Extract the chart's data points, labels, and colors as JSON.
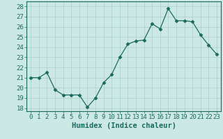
{
  "x": [
    0,
    1,
    2,
    3,
    4,
    5,
    6,
    7,
    8,
    9,
    10,
    11,
    12,
    13,
    14,
    15,
    16,
    17,
    18,
    19,
    20,
    21,
    22,
    23
  ],
  "y": [
    21.0,
    21.0,
    21.5,
    19.8,
    19.3,
    19.3,
    19.3,
    18.1,
    19.0,
    20.5,
    21.3,
    23.0,
    24.3,
    24.6,
    24.7,
    26.3,
    25.8,
    27.8,
    26.6,
    26.6,
    26.5,
    25.2,
    24.2,
    23.3
  ],
  "line_color": "#1a6b5e",
  "marker": "D",
  "marker_size": 2.5,
  "bg_color": "#cce8e4",
  "grid_color": "#aacfcb",
  "xlabel": "Humidex (Indice chaleur)",
  "ylabel_ticks": [
    18,
    19,
    20,
    21,
    22,
    23,
    24,
    25,
    26,
    27,
    28
  ],
  "ylim": [
    17.7,
    28.5
  ],
  "xlim": [
    -0.5,
    23.5
  ],
  "xtick_labels": [
    "0",
    "1",
    "2",
    "3",
    "4",
    "5",
    "6",
    "7",
    "8",
    "9",
    "10",
    "11",
    "12",
    "13",
    "14",
    "15",
    "16",
    "17",
    "18",
    "19",
    "20",
    "21",
    "22",
    "23"
  ],
  "title_color": "#1a6b5e",
  "label_fontsize": 7.5,
  "tick_fontsize": 6.5
}
